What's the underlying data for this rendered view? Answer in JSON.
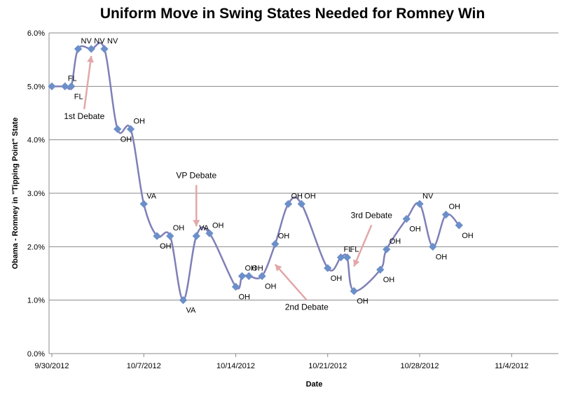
{
  "chart_data": {
    "type": "line",
    "title": "Uniform Move in Swing States Needed for Romney Win",
    "xlabel": "Date",
    "ylabel": "Obama - Romney in \"Tipping Point\" State",
    "x_ticks": [
      "9/30/2012",
      "10/7/2012",
      "10/14/2012",
      "10/21/2012",
      "10/28/2012",
      "11/4/2012"
    ],
    "y_ticks": [
      "0.0%",
      "1.0%",
      "2.0%",
      "3.0%",
      "4.0%",
      "5.0%",
      "6.0%"
    ],
    "ylim": [
      0,
      6
    ],
    "grid": "horizontal",
    "series": [
      {
        "color": "#7f7fb8",
        "marker_color": "#6b8fc9",
        "points": [
          {
            "x": "9/30/2012",
            "y": 5.0,
            "label": ""
          },
          {
            "x": "10/1/2012",
            "y": 5.0,
            "label": "FL"
          },
          {
            "x": "10/1/2012",
            "y": 5.0,
            "label": "FL"
          },
          {
            "x": "10/2/2012",
            "y": 5.7,
            "label": "NV"
          },
          {
            "x": "10/3/2012",
            "y": 5.7,
            "label": "NV"
          },
          {
            "x": "10/4/2012",
            "y": 5.7,
            "label": "NV"
          },
          {
            "x": "10/5/2012",
            "y": 4.2,
            "label": "OH"
          },
          {
            "x": "10/6/2012",
            "y": 4.2,
            "label": "OH"
          },
          {
            "x": "10/7/2012",
            "y": 2.8,
            "label": "VA"
          },
          {
            "x": "10/8/2012",
            "y": 2.2,
            "label": "OH"
          },
          {
            "x": "10/9/2012",
            "y": 2.2,
            "label": "OH"
          },
          {
            "x": "10/10/2012",
            "y": 1.0,
            "label": "VA"
          },
          {
            "x": "10/11/2012",
            "y": 2.2,
            "label": "VA"
          },
          {
            "x": "10/12/2012",
            "y": 2.25,
            "label": "OH"
          },
          {
            "x": "10/14/2012",
            "y": 1.25,
            "label": "OH"
          },
          {
            "x": "10/14/2012",
            "y": 1.45,
            "label": "OH"
          },
          {
            "x": "10/15/2012",
            "y": 1.45,
            "label": "OH"
          },
          {
            "x": "10/16/2012",
            "y": 1.45,
            "label": "OH"
          },
          {
            "x": "10/17/2012",
            "y": 2.05,
            "label": "OH"
          },
          {
            "x": "10/18/2012",
            "y": 2.8,
            "label": "OH"
          },
          {
            "x": "10/19/2012",
            "y": 2.8,
            "label": "OH"
          },
          {
            "x": "10/21/2012",
            "y": 1.6,
            "label": "OH"
          },
          {
            "x": "10/22/2012",
            "y": 1.8,
            "label": "FL"
          },
          {
            "x": "10/22/2012",
            "y": 1.8,
            "label": "FL"
          },
          {
            "x": "10/23/2012",
            "y": 1.17,
            "label": "OH"
          },
          {
            "x": "10/25/2012",
            "y": 1.57,
            "label": "OH"
          },
          {
            "x": "10/25/2012",
            "y": 1.95,
            "label": "OH"
          },
          {
            "x": "10/27/2012",
            "y": 2.52,
            "label": "OH"
          },
          {
            "x": "10/28/2012",
            "y": 2.8,
            "label": "NV"
          },
          {
            "x": "10/29/2012",
            "y": 2.0,
            "label": "OH"
          },
          {
            "x": "10/30/2012",
            "y": 2.6,
            "label": "OH"
          },
          {
            "x": "10/31/2012",
            "y": 2.4,
            "label": "OH"
          }
        ]
      }
    ],
    "annotations": [
      {
        "text": "1st Debate",
        "arrow_to": {
          "x": "10/3/2012",
          "y": 5.7
        }
      },
      {
        "text": "VP Debate",
        "arrow_to": {
          "x": "10/11/2012",
          "y": 2.25
        }
      },
      {
        "text": "2nd Debate",
        "arrow_to": {
          "x": "10/17/2012",
          "y": 1.8
        }
      },
      {
        "text": "3rd Debate",
        "arrow_to": {
          "x": "10/23/2012",
          "y": 1.5
        }
      }
    ]
  }
}
